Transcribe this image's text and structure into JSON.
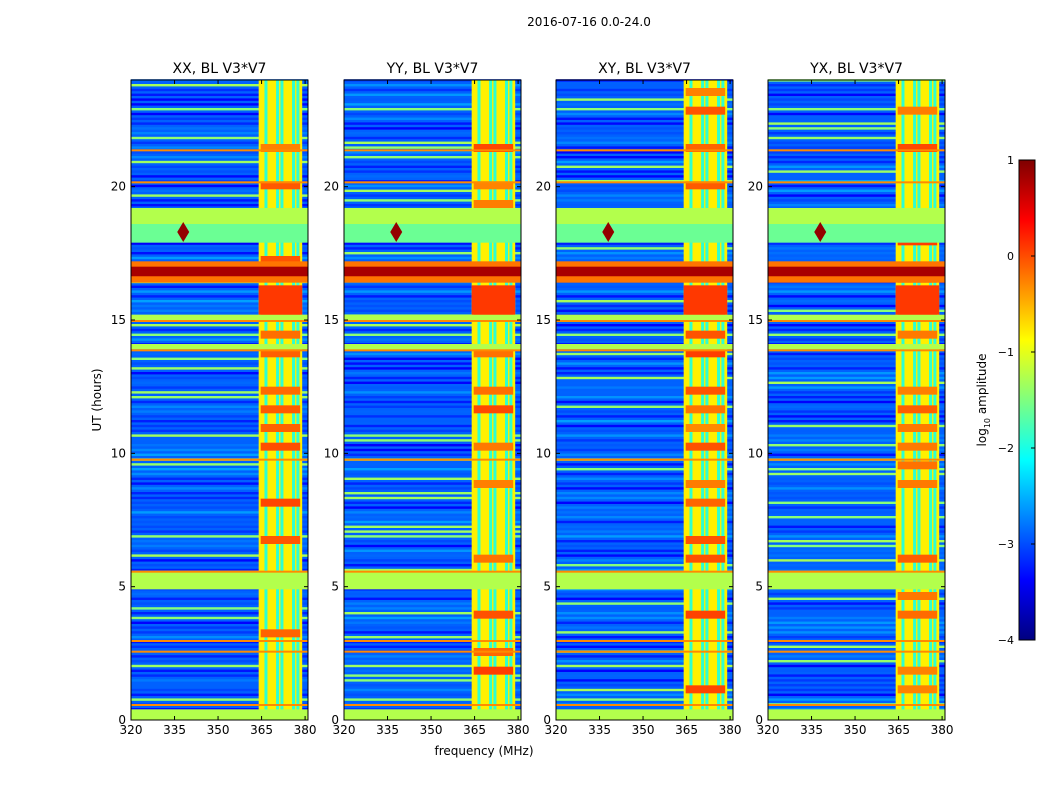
{
  "chart_data": {
    "type": "heatmap",
    "suptitle": "2016-07-16 0.0-24.0",
    "xlabel": "frequency (MHz)",
    "ylabel": "UT (hours)",
    "xlim": [
      320,
      381
    ],
    "ylim": [
      0,
      24
    ],
    "xticks": [
      320,
      335,
      350,
      365,
      380
    ],
    "yticks": [
      0,
      5,
      10,
      15,
      20
    ],
    "panels": [
      {
        "title": "XX, BL V3*V7"
      },
      {
        "title": "YY, BL V3*V7"
      },
      {
        "title": "XY, BL V3*V7"
      },
      {
        "title": "YX, BL V3*V7"
      }
    ],
    "colorbar": {
      "label": "log",
      "label_sub": "10",
      "label_suffix": " amplitude",
      "min": -4,
      "max": 1,
      "ticks": [
        1,
        0,
        -1,
        -2,
        -3,
        -4
      ],
      "colormap": "jet",
      "colors": [
        "#00007f",
        "#0000ff",
        "#007fff",
        "#00ffff",
        "#7fff7f",
        "#ffff00",
        "#ff7f00",
        "#ff0000",
        "#7f0000"
      ]
    },
    "features": {
      "rfi_band_mhz": [
        364,
        379
      ],
      "rfi_band_log_amp": -0.8,
      "background_log_amp": -2.9,
      "flagged_time_ranges_h": [
        [
          0,
          0.4
        ],
        [
          4.9,
          5.6
        ],
        [
          18.6,
          19.2
        ],
        [
          13.9,
          14.1
        ],
        [
          15.0,
          15.2
        ]
      ],
      "strong_rfi_time_h": [
        16.4,
        17.2
      ],
      "strong_rfi_log_amp": 0.8,
      "event_time_h": 18.3,
      "event_freq_mhz": 338
    }
  }
}
